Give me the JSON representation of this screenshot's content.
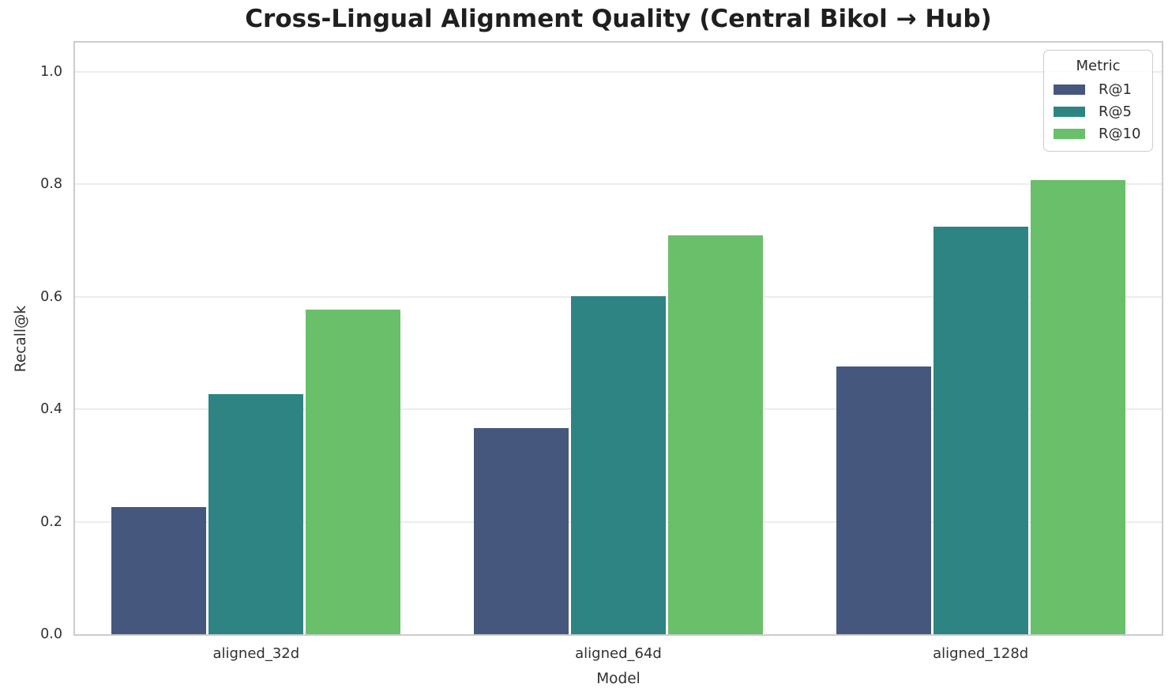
{
  "chart_data": {
    "type": "bar",
    "title": "Cross-Lingual Alignment Quality (Central Bikol → Hub)",
    "xlabel": "Model",
    "ylabel": "Recall@k",
    "categories": [
      "aligned_32d",
      "aligned_64d",
      "aligned_128d"
    ],
    "series": [
      {
        "name": "R@1",
        "color": "#46577e",
        "values": [
          0.226,
          0.367,
          0.476
        ]
      },
      {
        "name": "R@5",
        "color": "#2e8482",
        "values": [
          0.427,
          0.601,
          0.725
        ]
      },
      {
        "name": "R@10",
        "color": "#6abf6a",
        "values": [
          0.577,
          0.709,
          0.808
        ]
      }
    ],
    "ylim": [
      0,
      1.052
    ],
    "yticks": [
      "0.0",
      "0.2",
      "0.4",
      "0.6",
      "0.8",
      "1.0"
    ],
    "grid": true,
    "legend": {
      "title": "Metric",
      "position": "upper right"
    }
  },
  "style": {
    "background_color": "#ffffff",
    "grid_color": "#ececec",
    "spine_color": "#cccccc",
    "text_color": "#262626"
  }
}
